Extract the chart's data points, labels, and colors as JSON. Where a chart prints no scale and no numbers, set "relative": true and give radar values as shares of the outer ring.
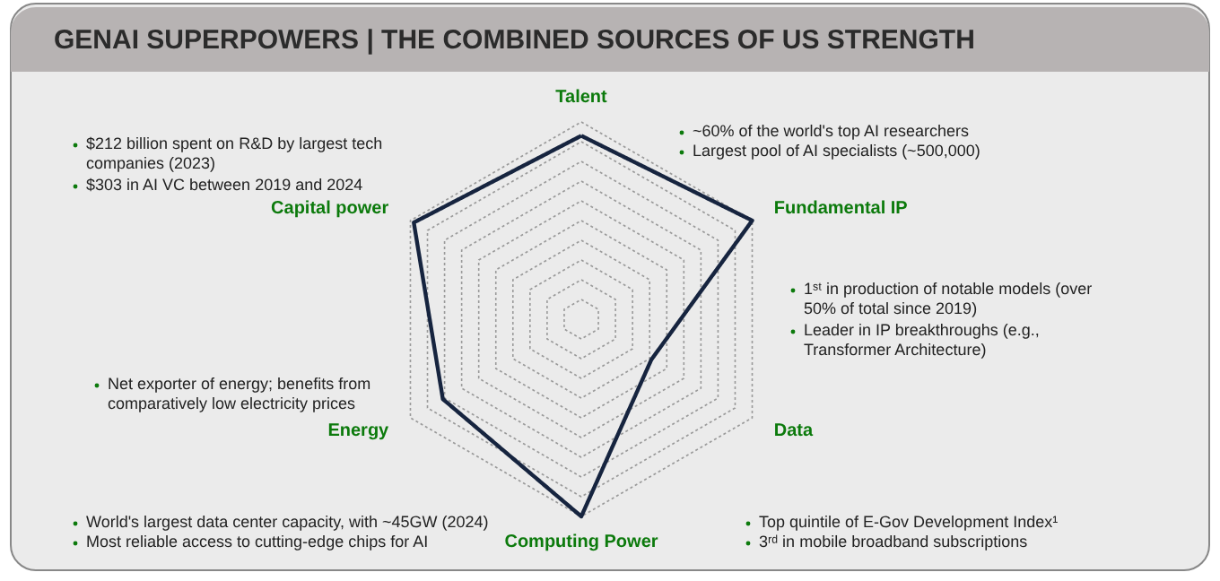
{
  "chart_data": {
    "type": "radar",
    "title": "GENAI SUPERPOWERS | THE COMBINED SOURCES OF US STRENGTH",
    "relative": true,
    "grid": true,
    "marker": "none",
    "line_style": "solid",
    "categories": [
      "Talent",
      "Fundamental IP",
      "Data",
      "Computing Power",
      "Energy",
      "Capital power"
    ],
    "series": [
      {
        "color": "#16243f",
        "values": [
          0.93,
          1.0,
          0.41,
          1.0,
          0.81,
          0.98
        ]
      }
    ],
    "annotations": [
      "~60% of the world's top AI researchers",
      "Largest pool of AI specialists (~500,000)",
      "1ˢᵗ in production of notable models (over 50% of total since 2019)",
      "Leader in IP breakthroughs (e.g., Transformer Architecture)",
      "Top quintile of E-Gov Development Index¹",
      "3ʳᵈ in mobile broadband subscriptions",
      "World's largest data center capacity, with ~45GW (2024)",
      "Most reliable access to cutting-edge chips for AI",
      "Net exporter of energy; benefits from comparatively low electricity prices",
      "$212 billion spent on R&D by largest tech companies (2023)",
      "$303 in AI VC between 2019 and 2024"
    ]
  }
}
